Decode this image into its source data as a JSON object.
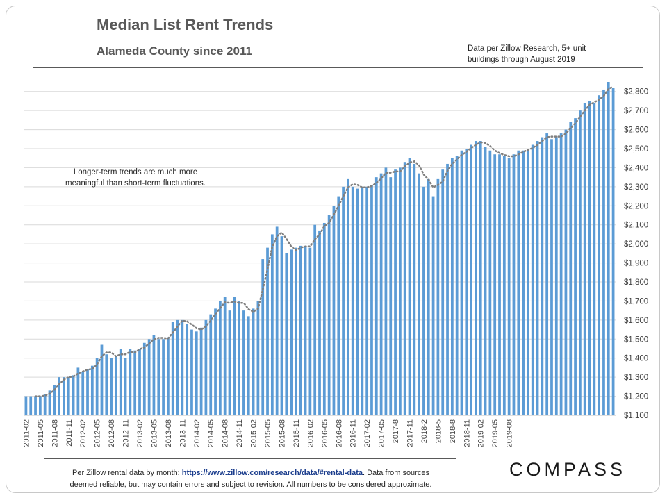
{
  "header": {
    "title": "Median List Rent Trends",
    "subtitle": "Alameda County since 2011",
    "source_line1": "Data per Zillow Research, 5+ unit",
    "source_line2": "buildings through August 2019"
  },
  "annotation": {
    "line1": "Longer-term trends are much more",
    "line2": "meaningful  than short-term fluctuations."
  },
  "footer": {
    "prefix": "Per Zillow  rental data by month: ",
    "link_text": "https://www.zillow.com/research/data/#rental-data",
    "suffix": ".  Data from sources",
    "line2": "deemed reliable, but may contain errors and subject to revision.  All numbers to be considered approximate."
  },
  "logo": {
    "text": "COMPASS"
  },
  "colors": {
    "bar": "#5b9bd5",
    "trend": "#7f7f7f",
    "grid": "#d9d9d9",
    "axis_text": "#404040"
  },
  "chart_data": {
    "type": "bar",
    "overlay": "moving-average trendline (dotted)",
    "ylim": [
      1100,
      2850
    ],
    "yticks": [
      1100,
      1200,
      1300,
      1400,
      1500,
      1600,
      1700,
      1800,
      1900,
      2000,
      2100,
      2200,
      2300,
      2400,
      2500,
      2600,
      2700,
      2800
    ],
    "ytick_labels": [
      "$1,100",
      "$1,200",
      "$1,300",
      "$1,400",
      "$1,500",
      "$1,600",
      "$1,700",
      "$1,800",
      "$1,900",
      "$2,000",
      "$2,100",
      "$2,200",
      "$2,300",
      "$2,400",
      "$2,500",
      "$2,600",
      "$2,700",
      "$2,800"
    ],
    "grid": true,
    "xtick_labels": [
      "2011-02",
      "2011-05",
      "2011-08",
      "2011-11",
      "2012-02",
      "2012-05",
      "2012-08",
      "2012-11",
      "2013-02",
      "2013-05",
      "2013-08",
      "2013-11",
      "2014-02",
      "2014-05",
      "2014-08",
      "2014-11",
      "2015-02",
      "2015-05",
      "2015-08",
      "2015-11",
      "2016-02",
      "2016-05",
      "2016-08",
      "2016-11",
      "2017-02",
      "2017-05",
      "2017-8",
      "2017-11",
      "2018-2",
      "2018-5",
      "2018-8",
      "2018-11",
      "2019-02",
      "2019-05",
      "2019-08"
    ],
    "values": [
      1200,
      1200,
      1200,
      1200,
      1210,
      1230,
      1260,
      1300,
      1300,
      1300,
      1310,
      1350,
      1330,
      1340,
      1360,
      1400,
      1470,
      1420,
      1400,
      1410,
      1450,
      1400,
      1450,
      1440,
      1450,
      1480,
      1500,
      1520,
      1500,
      1500,
      1510,
      1590,
      1600,
      1600,
      1580,
      1550,
      1540,
      1560,
      1600,
      1630,
      1660,
      1700,
      1720,
      1650,
      1720,
      1700,
      1650,
      1620,
      1660,
      1700,
      1920,
      1980,
      2050,
      2090,
      2040,
      1950,
      1970,
      1980,
      1990,
      1990,
      1980,
      2100,
      2070,
      2110,
      2150,
      2200,
      2250,
      2300,
      2340,
      2300,
      2290,
      2300,
      2300,
      2310,
      2350,
      2370,
      2400,
      2350,
      2390,
      2400,
      2430,
      2450,
      2420,
      2370,
      2300,
      2340,
      2250,
      2340,
      2390,
      2420,
      2450,
      2460,
      2490,
      2500,
      2520,
      2540,
      2540,
      2510,
      2490,
      2470,
      2470,
      2460,
      2450,
      2470,
      2490,
      2490,
      2500,
      2520,
      2540,
      2560,
      2580,
      2550,
      2560,
      2580,
      2600,
      2640,
      2660,
      2700,
      2740,
      2750,
      2740,
      2780,
      2810,
      2850,
      2820
    ]
  }
}
